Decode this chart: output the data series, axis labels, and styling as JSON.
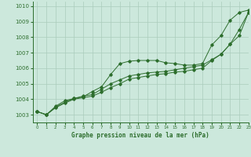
{
  "title": "Graphe pression niveau de la mer (hPa)",
  "bg_color": "#cce8dc",
  "grid_color": "#aaccbb",
  "line_color": "#2d6e2d",
  "xlim": [
    -0.5,
    23
  ],
  "ylim": [
    1002.5,
    1010.3
  ],
  "yticks": [
    1003,
    1004,
    1005,
    1006,
    1007,
    1008,
    1009,
    1010
  ],
  "xticks": [
    0,
    1,
    2,
    3,
    4,
    5,
    6,
    7,
    8,
    9,
    10,
    11,
    12,
    13,
    14,
    15,
    16,
    17,
    18,
    19,
    20,
    21,
    22,
    23
  ],
  "series1_x": [
    0,
    1,
    2,
    3,
    4,
    5,
    6,
    7,
    8,
    9,
    10,
    11,
    12,
    13,
    14,
    15,
    16,
    17,
    18,
    19,
    20,
    21,
    22,
    23
  ],
  "series1_y": [
    1003.2,
    1003.0,
    1003.55,
    1003.9,
    1004.05,
    1004.15,
    1004.5,
    1004.8,
    1005.6,
    1006.3,
    1006.45,
    1006.5,
    1006.5,
    1006.5,
    1006.35,
    1006.3,
    1006.2,
    1006.2,
    1006.3,
    1007.5,
    1008.1,
    1009.1,
    1009.6,
    1009.75
  ],
  "series2_x": [
    0,
    1,
    2,
    3,
    4,
    5,
    6,
    7,
    8,
    9,
    10,
    11,
    12,
    13,
    14,
    15,
    16,
    17,
    18,
    19,
    20,
    21,
    22,
    23
  ],
  "series2_y": [
    1003.2,
    1003.0,
    1003.5,
    1003.8,
    1004.05,
    1004.2,
    1004.3,
    1004.65,
    1005.0,
    1005.25,
    1005.5,
    1005.6,
    1005.7,
    1005.75,
    1005.8,
    1005.9,
    1006.0,
    1006.1,
    1006.2,
    1006.55,
    1006.9,
    1007.55,
    1008.1,
    1009.6
  ],
  "series3_x": [
    0,
    1,
    2,
    3,
    4,
    5,
    6,
    7,
    8,
    9,
    10,
    11,
    12,
    13,
    14,
    15,
    16,
    17,
    18,
    19,
    20,
    21,
    22,
    23
  ],
  "series3_y": [
    1003.2,
    1003.0,
    1003.45,
    1003.75,
    1004.0,
    1004.1,
    1004.2,
    1004.45,
    1004.75,
    1005.0,
    1005.3,
    1005.4,
    1005.5,
    1005.6,
    1005.65,
    1005.75,
    1005.8,
    1005.9,
    1006.0,
    1006.5,
    1006.9,
    1007.55,
    1008.5,
    1009.6
  ]
}
